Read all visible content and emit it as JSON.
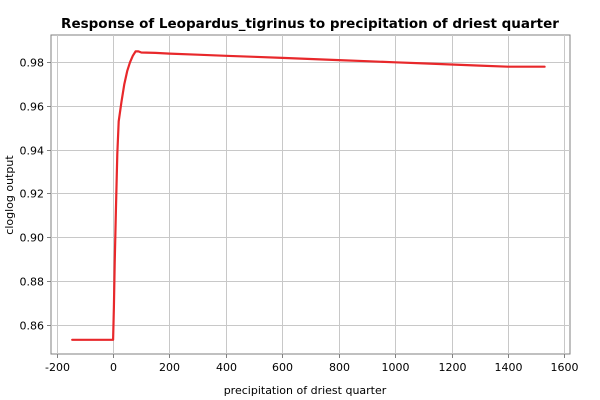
{
  "chart_data": {
    "type": "line",
    "title": "Response of Leopardus_tigrinus to precipitation of driest quarter",
    "xlabel": "precipitation of driest quarter",
    "ylabel": "cloglog output",
    "xlim": [
      -220,
      1620
    ],
    "ylim": [
      0.8465,
      0.9925
    ],
    "xticks": [
      -200,
      0,
      200,
      400,
      600,
      800,
      1000,
      1200,
      1400,
      1600
    ],
    "xtick_labels": [
      "-200",
      "0",
      "200",
      "400",
      "600",
      "800",
      "1000",
      "1200",
      "1400",
      "1600"
    ],
    "yticks": [
      0.86,
      0.88,
      0.9,
      0.92,
      0.94,
      0.96,
      0.98
    ],
    "ytick_labels": [
      "0.86",
      "0.88",
      "0.90",
      "0.92",
      "0.94",
      "0.96",
      "0.98"
    ],
    "grid": true,
    "series": [
      {
        "color": "#e8282b",
        "x": [
          -145,
          0,
          3,
          6,
          10,
          15,
          20,
          30,
          40,
          50,
          60,
          70,
          80,
          90,
          100,
          150,
          200,
          300,
          400,
          500,
          600,
          700,
          800,
          900,
          1000,
          1100,
          1200,
          1300,
          1400,
          1530
        ],
        "y": [
          0.853,
          0.853,
          0.868,
          0.888,
          0.912,
          0.938,
          0.953,
          0.962,
          0.97,
          0.976,
          0.98,
          0.983,
          0.985,
          0.985,
          0.9845,
          0.9843,
          0.984,
          0.9835,
          0.983,
          0.9825,
          0.982,
          0.9815,
          0.981,
          0.9805,
          0.98,
          0.9795,
          0.979,
          0.9785,
          0.978,
          0.978
        ]
      }
    ]
  }
}
